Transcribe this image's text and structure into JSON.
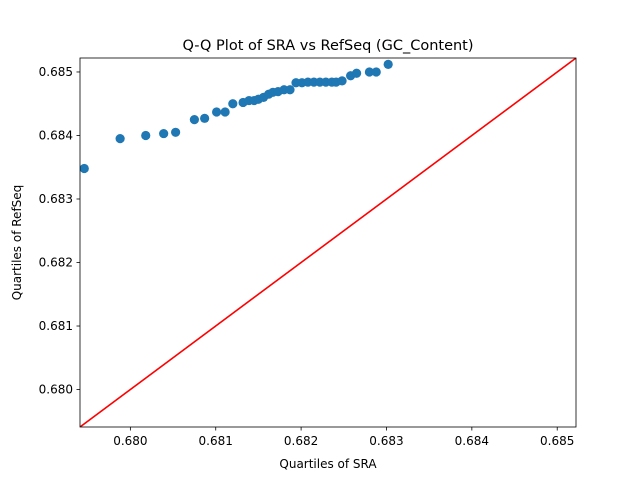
{
  "chart_data": {
    "type": "scatter",
    "title": "Q-Q Plot of SRA vs RefSeq (GC_Content)",
    "xlabel": "Quartiles of SRA",
    "ylabel": "Quartiles of RefSeq",
    "xlim": [
      0.67941,
      0.68522
    ],
    "ylim": [
      0.67941,
      0.68522
    ],
    "xticks": [
      0.68,
      0.681,
      0.682,
      0.683,
      0.684,
      0.685
    ],
    "yticks": [
      0.68,
      0.681,
      0.682,
      0.683,
      0.684,
      0.685
    ],
    "tick_labels": [
      "0.680",
      "0.681",
      "0.682",
      "0.683",
      "0.684",
      "0.685"
    ],
    "grid": false,
    "colors": {
      "points": "#1f77b4",
      "reference_line": "#ff0000"
    },
    "reference_line": {
      "type": "y=x"
    },
    "points": [
      {
        "x": 0.67946,
        "y": 0.68348
      },
      {
        "x": 0.67988,
        "y": 0.68395
      },
      {
        "x": 0.68018,
        "y": 0.684
      },
      {
        "x": 0.68039,
        "y": 0.68403
      },
      {
        "x": 0.68053,
        "y": 0.68405
      },
      {
        "x": 0.68075,
        "y": 0.68425
      },
      {
        "x": 0.68087,
        "y": 0.68427
      },
      {
        "x": 0.68101,
        "y": 0.68437
      },
      {
        "x": 0.68111,
        "y": 0.68437
      },
      {
        "x": 0.6812,
        "y": 0.6845
      },
      {
        "x": 0.68132,
        "y": 0.68452
      },
      {
        "x": 0.68139,
        "y": 0.68455
      },
      {
        "x": 0.68145,
        "y": 0.68455
      },
      {
        "x": 0.6815,
        "y": 0.68457
      },
      {
        "x": 0.68156,
        "y": 0.6846
      },
      {
        "x": 0.68162,
        "y": 0.68465
      },
      {
        "x": 0.68167,
        "y": 0.68468
      },
      {
        "x": 0.68173,
        "y": 0.68469
      },
      {
        "x": 0.6818,
        "y": 0.68472
      },
      {
        "x": 0.68187,
        "y": 0.68472
      },
      {
        "x": 0.68194,
        "y": 0.68483
      },
      {
        "x": 0.68201,
        "y": 0.68483
      },
      {
        "x": 0.68208,
        "y": 0.68484
      },
      {
        "x": 0.68215,
        "y": 0.68484
      },
      {
        "x": 0.68222,
        "y": 0.68484
      },
      {
        "x": 0.68229,
        "y": 0.68484
      },
      {
        "x": 0.68236,
        "y": 0.68484
      },
      {
        "x": 0.68241,
        "y": 0.68484
      },
      {
        "x": 0.68248,
        "y": 0.68486
      },
      {
        "x": 0.68258,
        "y": 0.68494
      },
      {
        "x": 0.68265,
        "y": 0.68498
      },
      {
        "x": 0.6828,
        "y": 0.685
      },
      {
        "x": 0.68288,
        "y": 0.685
      },
      {
        "x": 0.68302,
        "y": 0.68512
      }
    ]
  }
}
